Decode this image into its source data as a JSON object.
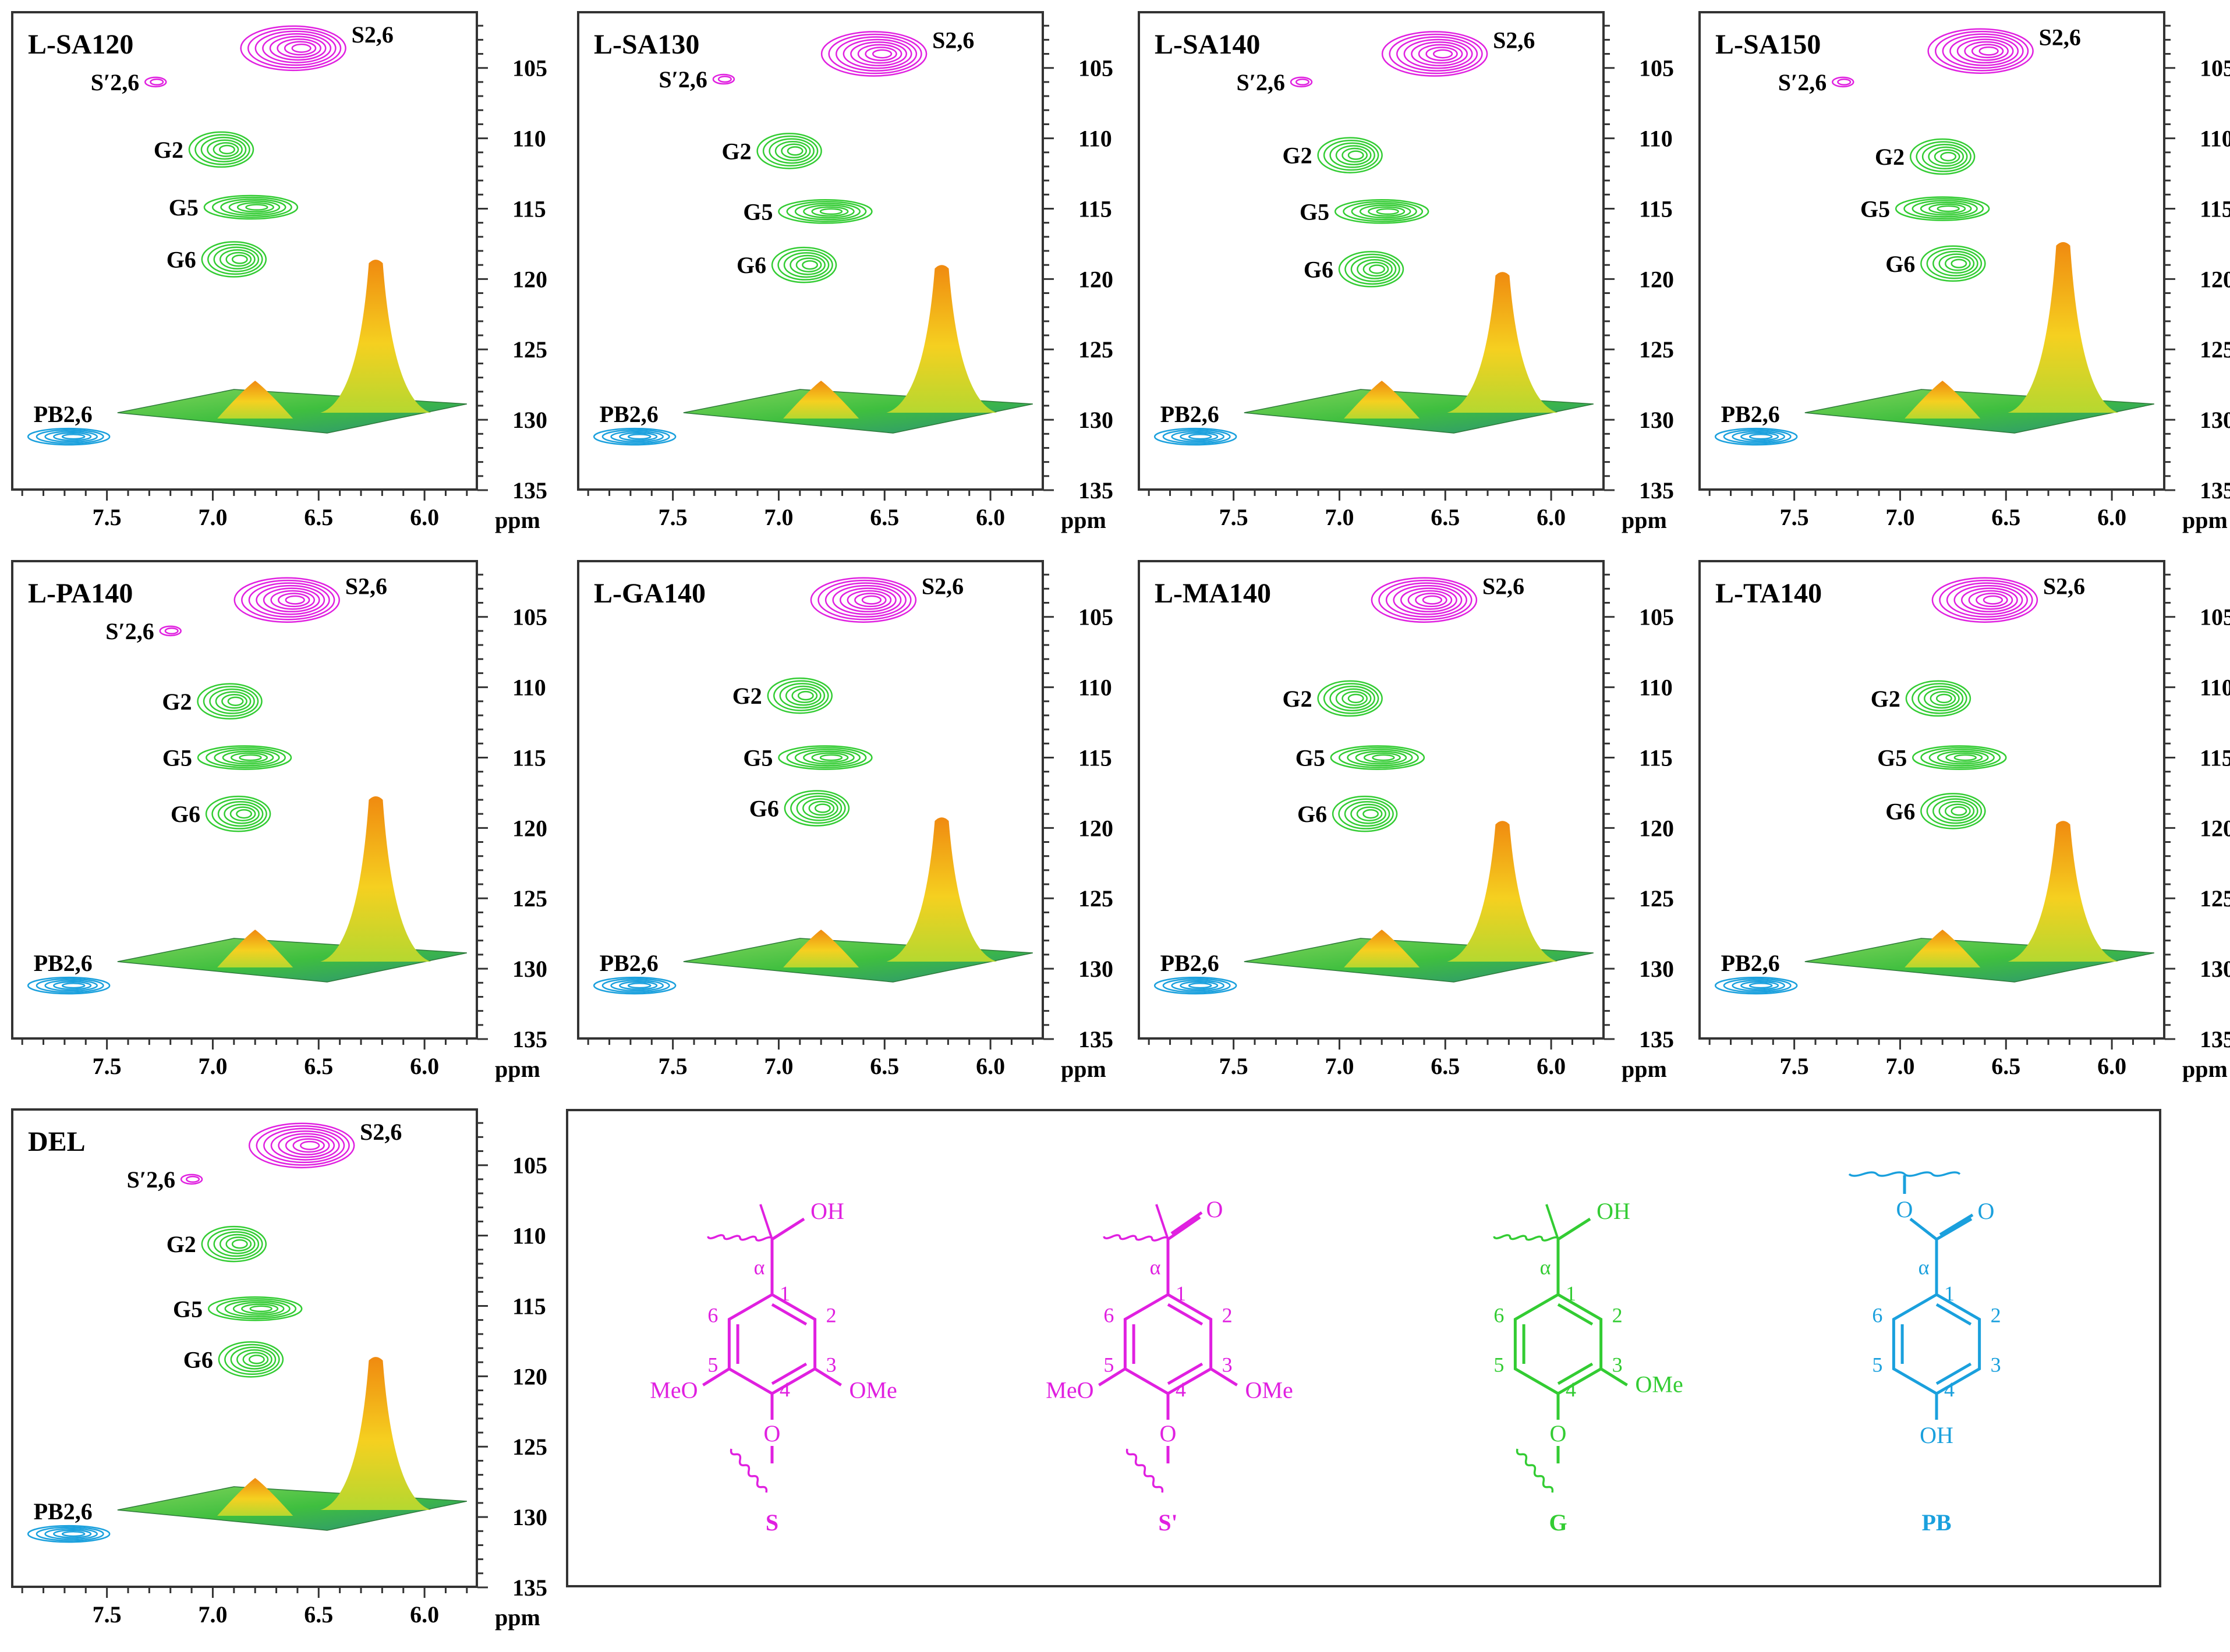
{
  "figure": {
    "x_unit": "ppm",
    "colors": {
      "syringyl": "#e020e0",
      "guaiacyl": "#33cc33",
      "p_hydroxybenzoate": "#1aa0dd",
      "surface_peak": "#f08a10",
      "surface_base": "#3fbf3f",
      "frame": "#333333"
    }
  },
  "chart_data": [
    {
      "type": "heatmap",
      "title": "L-SA120",
      "xlim": [
        7.95,
        5.75
      ],
      "ylim": [
        135,
        101
      ],
      "xticks": [
        7.5,
        7.0,
        6.5,
        6.0
      ],
      "yticks": [
        105,
        110,
        115,
        120,
        125,
        130,
        135
      ],
      "xlabel": "ppm",
      "signals": [
        {
          "label": "S2,6",
          "x": 6.62,
          "y": 103.6
        },
        {
          "label": "S′2,6",
          "x": 7.27,
          "y": 106.0
        },
        {
          "label": "G2",
          "x": 6.96,
          "y": 110.8
        },
        {
          "label": "G5",
          "x": 6.82,
          "y": 114.9
        },
        {
          "label": "G6",
          "x": 6.9,
          "y": 118.6
        },
        {
          "label": "PB2,6",
          "x": 7.68,
          "y": 131.2
        }
      ],
      "surface_peak_height": 0.85
    },
    {
      "type": "heatmap",
      "title": "L-SA130",
      "xlim": [
        7.95,
        5.75
      ],
      "ylim": [
        135,
        101
      ],
      "xticks": [
        7.5,
        7.0,
        6.5,
        6.0
      ],
      "yticks": [
        105,
        110,
        115,
        120,
        125,
        130,
        135
      ],
      "xlabel": "ppm",
      "signals": [
        {
          "label": "S2,6",
          "x": 6.55,
          "y": 104.0
        },
        {
          "label": "S′2,6",
          "x": 7.26,
          "y": 105.8
        },
        {
          "label": "G2",
          "x": 6.95,
          "y": 110.9
        },
        {
          "label": "G5",
          "x": 6.78,
          "y": 115.2
        },
        {
          "label": "G6",
          "x": 6.88,
          "y": 119.0
        },
        {
          "label": "PB2,6",
          "x": 7.68,
          "y": 131.2
        }
      ],
      "surface_peak_height": 0.82
    },
    {
      "type": "heatmap",
      "title": "L-SA140",
      "xlim": [
        7.95,
        5.75
      ],
      "ylim": [
        135,
        101
      ],
      "xticks": [
        7.5,
        7.0,
        6.5,
        6.0
      ],
      "yticks": [
        105,
        110,
        115,
        120,
        125,
        130,
        135
      ],
      "xlabel": "ppm",
      "signals": [
        {
          "label": "S2,6",
          "x": 6.55,
          "y": 104.0
        },
        {
          "label": "S′2,6",
          "x": 7.18,
          "y": 106.0
        },
        {
          "label": "G2",
          "x": 6.95,
          "y": 111.2
        },
        {
          "label": "G5",
          "x": 6.8,
          "y": 115.2
        },
        {
          "label": "G6",
          "x": 6.85,
          "y": 119.3
        },
        {
          "label": "PB2,6",
          "x": 7.68,
          "y": 131.2
        }
      ],
      "surface_peak_height": 0.78
    },
    {
      "type": "heatmap",
      "title": "L-SA150",
      "xlim": [
        7.95,
        5.75
      ],
      "ylim": [
        135,
        101
      ],
      "xticks": [
        7.5,
        7.0,
        6.5,
        6.0
      ],
      "yticks": [
        105,
        110,
        115,
        120,
        125,
        130,
        135
      ],
      "xlabel": "ppm",
      "signals": [
        {
          "label": "S2,6",
          "x": 6.62,
          "y": 103.8
        },
        {
          "label": "S′2,6",
          "x": 7.27,
          "y": 106.0
        },
        {
          "label": "G2",
          "x": 6.8,
          "y": 111.3
        },
        {
          "label": "G5",
          "x": 6.8,
          "y": 115.0
        },
        {
          "label": "G6",
          "x": 6.75,
          "y": 118.9
        },
        {
          "label": "PB2,6",
          "x": 7.68,
          "y": 131.2
        }
      ],
      "surface_peak_height": 0.95
    },
    {
      "type": "heatmap",
      "title": "L-PA140",
      "xlim": [
        7.95,
        5.75
      ],
      "ylim": [
        135,
        101
      ],
      "xticks": [
        7.5,
        7.0,
        6.5,
        6.0
      ],
      "yticks": [
        105,
        110,
        115,
        120,
        125,
        130,
        135
      ],
      "xlabel": "ppm",
      "signals": [
        {
          "label": "S2,6",
          "x": 6.65,
          "y": 103.8
        },
        {
          "label": "S′2,6",
          "x": 7.2,
          "y": 106.0
        },
        {
          "label": "G2",
          "x": 6.92,
          "y": 111.0
        },
        {
          "label": "G5",
          "x": 6.85,
          "y": 115.0
        },
        {
          "label": "G6",
          "x": 6.88,
          "y": 119.0
        },
        {
          "label": "PB2,6",
          "x": 7.68,
          "y": 131.2
        }
      ],
      "surface_peak_height": 0.92
    },
    {
      "type": "heatmap",
      "title": "L-GA140",
      "xlim": [
        7.95,
        5.75
      ],
      "ylim": [
        135,
        101
      ],
      "xticks": [
        7.5,
        7.0,
        6.5,
        6.0
      ],
      "yticks": [
        105,
        110,
        115,
        120,
        125,
        130,
        135
      ],
      "xlabel": "ppm",
      "signals": [
        {
          "label": "S2,6",
          "x": 6.6,
          "y": 103.8
        },
        {
          "label": "G2",
          "x": 6.9,
          "y": 110.6
        },
        {
          "label": "G5",
          "x": 6.78,
          "y": 115.0
        },
        {
          "label": "G6",
          "x": 6.82,
          "y": 118.6
        },
        {
          "label": "PB2,6",
          "x": 7.68,
          "y": 131.2
        }
      ],
      "surface_peak_height": 0.8
    },
    {
      "type": "heatmap",
      "title": "L-MA140",
      "xlim": [
        7.95,
        5.75
      ],
      "ylim": [
        135,
        101
      ],
      "xticks": [
        7.5,
        7.0,
        6.5,
        6.0
      ],
      "yticks": [
        105,
        110,
        115,
        120,
        125,
        130,
        135
      ],
      "xlabel": "ppm",
      "signals": [
        {
          "label": "S2,6",
          "x": 6.6,
          "y": 103.8
        },
        {
          "label": "G2",
          "x": 6.95,
          "y": 110.8
        },
        {
          "label": "G5",
          "x": 6.82,
          "y": 115.0
        },
        {
          "label": "G6",
          "x": 6.88,
          "y": 119.0
        },
        {
          "label": "PB2,6",
          "x": 7.68,
          "y": 131.2
        }
      ],
      "surface_peak_height": 0.78
    },
    {
      "type": "heatmap",
      "title": "L-TA140",
      "xlim": [
        7.95,
        5.75
      ],
      "ylim": [
        135,
        101
      ],
      "xticks": [
        7.5,
        7.0,
        6.5,
        6.0
      ],
      "yticks": [
        105,
        110,
        115,
        120,
        125,
        130,
        135
      ],
      "xlabel": "ppm",
      "signals": [
        {
          "label": "S2,6",
          "x": 6.6,
          "y": 103.8
        },
        {
          "label": "G2",
          "x": 6.82,
          "y": 110.8
        },
        {
          "label": "G5",
          "x": 6.72,
          "y": 115.0
        },
        {
          "label": "G6",
          "x": 6.75,
          "y": 118.8
        },
        {
          "label": "PB2,6",
          "x": 7.68,
          "y": 131.2
        }
      ],
      "surface_peak_height": 0.78
    },
    {
      "type": "heatmap",
      "title": "DEL",
      "xlim": [
        7.95,
        5.75
      ],
      "ylim": [
        135,
        101
      ],
      "xticks": [
        7.5,
        7.0,
        6.5,
        6.0
      ],
      "yticks": [
        105,
        110,
        115,
        120,
        125,
        130,
        135
      ],
      "xlabel": "ppm",
      "signals": [
        {
          "label": "S2,6",
          "x": 6.58,
          "y": 103.6
        },
        {
          "label": "S′2,6",
          "x": 7.1,
          "y": 106.0
        },
        {
          "label": "G2",
          "x": 6.9,
          "y": 110.6
        },
        {
          "label": "G5",
          "x": 6.8,
          "y": 115.2
        },
        {
          "label": "G6",
          "x": 6.82,
          "y": 118.8
        },
        {
          "label": "PB2,6",
          "x": 7.68,
          "y": 131.2
        }
      ],
      "surface_peak_height": 0.85
    }
  ],
  "structures": [
    {
      "name": "S",
      "color": "#e020e0",
      "alpha_group": "OH",
      "substituents": [
        "MeO",
        "OMe"
      ],
      "ring_numbers": [
        "1",
        "2",
        "3",
        "4",
        "5",
        "6"
      ],
      "alpha": "α",
      "ether": "O"
    },
    {
      "name": "S'",
      "color": "#e020e0",
      "alpha_group": "O",
      "substituents": [
        "MeO",
        "OMe"
      ],
      "ring_numbers": [
        "1",
        "2",
        "3",
        "4",
        "5",
        "6"
      ],
      "alpha": "α",
      "ether": "O"
    },
    {
      "name": "G",
      "color": "#33cc33",
      "alpha_group": "OH",
      "substituents": [
        "OMe"
      ],
      "ring_numbers": [
        "1",
        "2",
        "3",
        "4",
        "5",
        "6"
      ],
      "alpha": "α",
      "ether": "O"
    },
    {
      "name": "PB",
      "color": "#1aa0dd",
      "alpha_group": "O",
      "substituents": [
        "OH"
      ],
      "ring_numbers": [
        "1",
        "2",
        "3",
        "4",
        "5",
        "6"
      ],
      "alpha": "α",
      "ether": "O"
    }
  ]
}
